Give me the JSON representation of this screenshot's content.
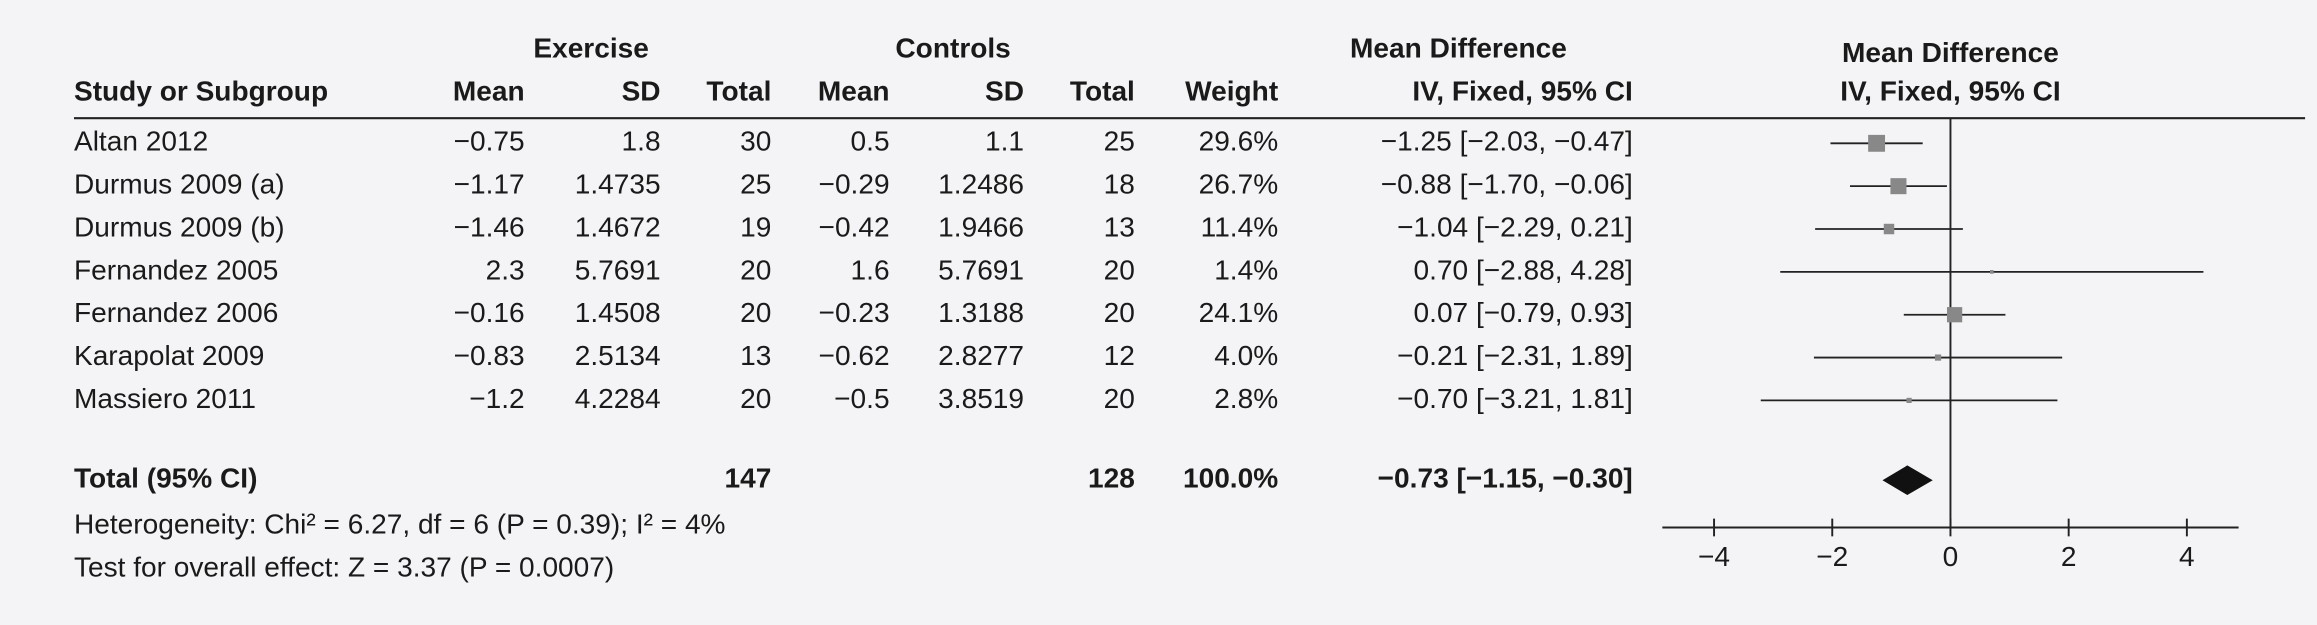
{
  "table": {
    "group_headers": [
      "Exercise",
      "Controls"
    ],
    "columns": [
      "Study or Subgroup",
      "Mean",
      "SD",
      "Total",
      "Mean",
      "SD",
      "Total",
      "Weight"
    ],
    "md_header": [
      "Mean Difference",
      "IV, Fixed, 95% CI"
    ],
    "rows": [
      [
        "Altan 2012",
        "−0.75",
        "1.8",
        "30",
        "0.5",
        "1.1",
        "25"
      ],
      [
        "Durmus 2009 (a)",
        "−1.17",
        "1.4735",
        "25",
        "−0.29",
        "1.2486",
        "18"
      ],
      [
        "Durmus 2009 (b)",
        "−1.46",
        "1.4672",
        "19",
        "−0.42",
        "1.9466",
        "13"
      ],
      [
        "Fernandez 2005",
        "2.3",
        "5.7691",
        "20",
        "1.6",
        "5.7691",
        "20"
      ],
      [
        "Fernandez 2006",
        "−0.16",
        "1.4508",
        "20",
        "−0.23",
        "1.3188",
        "20"
      ],
      [
        "Karapolat 2009",
        "−0.83",
        "2.5134",
        "13",
        "−0.62",
        "2.8277",
        "12"
      ],
      [
        "Massiero 2011",
        "−1.2",
        "4.2284",
        "20",
        "−0.5",
        "3.8519",
        "20"
      ]
    ],
    "total_row": [
      "Total (95% CI)",
      "147",
      "128"
    ],
    "notes": [
      "Heterogeneity: Chi² = 6.27, df = 6 (P = 0.39); I² = 4%",
      "Test for overall effect: Z = 3.37 (P = 0.0007)"
    ]
  },
  "chart_data": {
    "type": "forest",
    "title": "Mean Difference",
    "subtitle": "IV, Fixed, 95% CI",
    "values": [
      -1.25,
      -0.88,
      -1.04,
      0.7,
      0.07,
      -0.21,
      -0.7
    ],
    "lower": [
      -2.03,
      -1.7,
      -2.29,
      -2.88,
      -0.79,
      -2.31,
      -3.21
    ],
    "upper": [
      -0.47,
      -0.06,
      0.21,
      4.28,
      0.93,
      1.89,
      1.81
    ],
    "value_labels": [
      "−1.25 [−2.03, −0.47]",
      "−0.88 [−1.70, −0.06]",
      "−1.04 [−2.29, 0.21]",
      "0.70 [−2.88, 4.28]",
      "0.07 [−0.79, 0.93]",
      "−0.21 [−2.31, 1.89]",
      "−0.70 [−3.21, 1.81]"
    ],
    "weights": [
      29.6,
      26.7,
      11.4,
      1.4,
      24.1,
      4.0,
      2.8
    ],
    "weight_labels": [
      "29.6%",
      "26.7%",
      "11.4%",
      "1.4%",
      "24.1%",
      "4.0%",
      "2.8%"
    ],
    "total": {
      "value": -0.73,
      "lower": -1.15,
      "upper": -0.3,
      "value_label": "−0.73 [−1.15, −0.30]",
      "weight": 100.0,
      "weight_label": "100.0%"
    },
    "xlim": [
      -5,
      5
    ],
    "xticks": [
      {
        "value": -4,
        "label": "−4"
      },
      {
        "value": -2,
        "label": "−2"
      },
      0,
      2,
      4
    ],
    "color": "#888888"
  }
}
